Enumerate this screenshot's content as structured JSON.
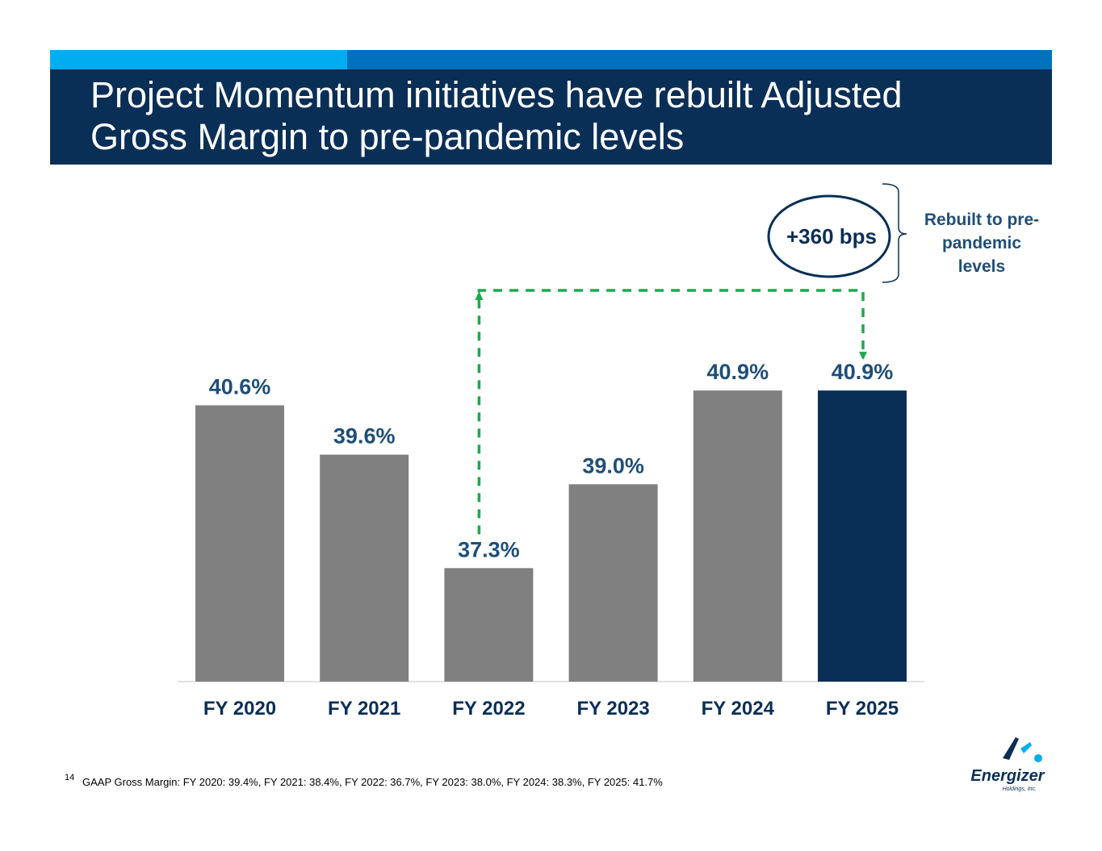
{
  "header": {
    "title_line1": "Project Momentum initiatives have rebuilt Adjusted",
    "title_line2": "Gross Margin to pre-pandemic levels"
  },
  "callout": {
    "bps_label": "+360 bps",
    "note_lines": [
      "Rebuilt to pre-",
      "pandemic",
      "levels"
    ]
  },
  "chart_data": {
    "type": "bar",
    "title": "Adjusted Gross Margin",
    "categories": [
      "FY 2020",
      "FY 2021",
      "FY 2022",
      "FY 2023",
      "FY 2024",
      "FY 2025"
    ],
    "values": [
      40.6,
      39.6,
      37.3,
      39.0,
      40.9,
      40.9
    ],
    "labels": [
      "40.6%",
      "39.6%",
      "37.3%",
      "39.0%",
      "40.9%",
      "40.9%"
    ],
    "ylim": [
      35.0,
      41.0
    ],
    "highlight_index": 5,
    "arrow_from_index": 2,
    "arrow_to_index": 5
  },
  "colors": {
    "bar": "#808080",
    "highlight_bar": "#0a2f57",
    "label_text": "#1f4e79",
    "arrow": "#1aab4b",
    "navy": "#0a2f57"
  },
  "footer": {
    "page_number": "14",
    "footnote": "GAAP Gross Margin: FY 2020: 39.4%, FY 2021: 38.4%, FY 2022: 36.7%, FY 2023: 38.0%, FY 2024: 38.3%, FY 2025: 41.7%",
    "logo_name": "Energizer",
    "logo_sub": "Holdings, Inc."
  }
}
